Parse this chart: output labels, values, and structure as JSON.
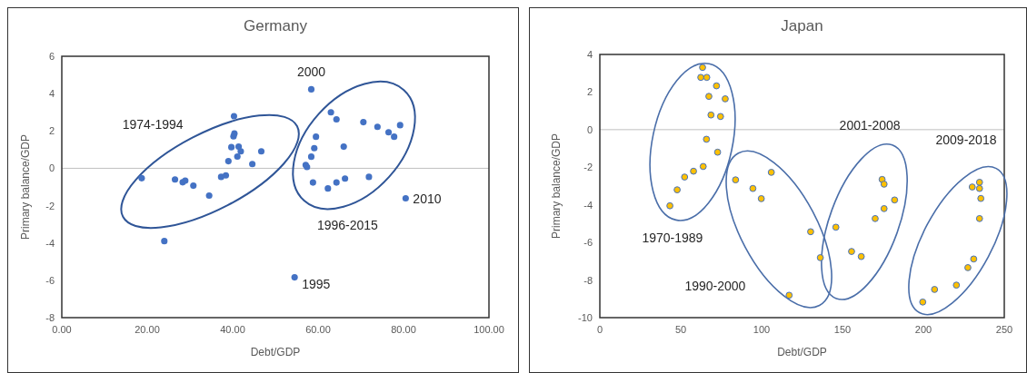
{
  "chart_data": [
    {
      "type": "scatter",
      "title": "Germany",
      "xlabel": "Debt/GDP",
      "ylabel": "Primary balance/GDP",
      "xlim": [
        0,
        100
      ],
      "xticks": [
        {
          "value": 0,
          "label": "0.00"
        },
        {
          "value": 20,
          "label": "20.00"
        },
        {
          "value": 40,
          "label": "40.00"
        },
        {
          "value": 60,
          "label": "60.00"
        },
        {
          "value": 80,
          "label": "80.00"
        },
        {
          "value": 100,
          "label": "100.00"
        }
      ],
      "ylim": [
        -8,
        6
      ],
      "yticks": [
        -8,
        -6,
        -4,
        -2,
        0,
        2,
        4,
        6
      ],
      "grid": false,
      "marker": "circle",
      "ref_lines": [
        {
          "axis": "y",
          "value": 0,
          "color": "#c0c0c0"
        }
      ],
      "series": [
        {
          "color": "#4472c4",
          "x": [
            18.7,
            24.0,
            26.5,
            28.3,
            28.9,
            30.8,
            34.5,
            37.3,
            38.4,
            39.0,
            39.7,
            40.2,
            40.4,
            40.3,
            41.1,
            41.4,
            41.9,
            44.6,
            46.7,
            58.4,
            63.0,
            64.3,
            70.6,
            73.9,
            76.5,
            77.8,
            79.2,
            59.5,
            59.1,
            58.4,
            57.1,
            57.4,
            66.0,
            58.8,
            62.3,
            64.3,
            66.3,
            71.9,
            80.5,
            54.5
          ],
          "values": [
            -0.53,
            -3.9,
            -0.6,
            -0.75,
            -0.66,
            -0.93,
            -1.46,
            -0.46,
            -0.38,
            0.38,
            1.13,
            1.71,
            1.86,
            2.79,
            0.63,
            1.16,
            0.91,
            0.23,
            0.91,
            4.23,
            3.0,
            2.62,
            2.47,
            2.22,
            1.93,
            1.69,
            2.31,
            1.69,
            1.08,
            0.62,
            0.18,
            0.07,
            1.16,
            -0.76,
            -1.08,
            -0.76,
            -0.55,
            -0.46,
            -1.61,
            -5.84
          ]
        }
      ],
      "annotations": [
        "1974-1994",
        {
          "text": "2000",
          "x": 58.4,
          "y": 4.23
        },
        "1996-2015",
        {
          "text": "2010",
          "x": 80.5,
          "y": -1.61
        },
        {
          "text": "1995",
          "x": 54.5,
          "y": -5.84
        }
      ]
    },
    {
      "type": "scatter",
      "title": "Japan",
      "xlabel": "Debt/GDP",
      "ylabel": "Primary balance/GDP",
      "xlim": [
        0,
        250
      ],
      "xticks": [
        0,
        50,
        100,
        150,
        200,
        250
      ],
      "ylim": [
        -10,
        4
      ],
      "yticks": [
        -10,
        -8,
        -6,
        -4,
        -2,
        0,
        2,
        4
      ],
      "grid": false,
      "marker": "circle",
      "ref_lines": [
        {
          "axis": "y",
          "value": 0,
          "color": "#c0c0c0"
        }
      ],
      "series": [
        {
          "color": "#ffc000",
          "x": [
            63.5,
            62.4,
            66.1,
            72.1,
            67.4,
            77.5,
            68.7,
            74.6,
            65.9,
            72.8,
            63.9,
            57.9,
            52.4,
            47.8,
            43.3,
            83.9,
            94.6,
            99.8,
            106.0,
            117.0,
            130.3,
            136.3,
            145.9,
            155.6,
            161.6,
            170.2,
            175.7,
            174.5,
            175.7,
            182.2,
            199.6,
            206.9,
            220.4,
            227.5,
            231.1,
            234.7,
            235.5,
            230.2,
            234.7,
            234.7
          ],
          "values": [
            3.31,
            2.78,
            2.78,
            2.33,
            1.77,
            1.64,
            0.78,
            0.7,
            -0.51,
            -1.2,
            -1.96,
            -2.21,
            -2.52,
            -3.2,
            -4.05,
            -2.67,
            -3.13,
            -3.67,
            -2.27,
            -8.81,
            -5.43,
            -6.81,
            -5.19,
            -6.48,
            -6.75,
            -4.73,
            -4.2,
            -2.65,
            -2.9,
            -3.74,
            -9.17,
            -8.5,
            -8.27,
            -7.34,
            -6.88,
            -4.73,
            -3.66,
            -3.05,
            -2.8,
            -3.13
          ]
        }
      ],
      "annotations": [
        "1970-1989",
        "1990-2000",
        "2001-2008",
        "2009-2018"
      ]
    }
  ]
}
